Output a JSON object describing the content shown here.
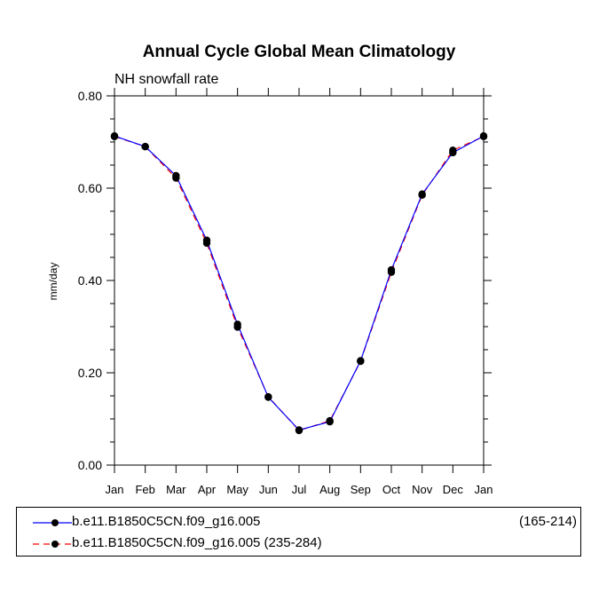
{
  "chart_data": {
    "type": "line",
    "title": "Annual Cycle Global Mean Climatology",
    "subtitle": "NH snowfall rate",
    "ylabel": "mm/day",
    "xlabel": "",
    "ylim": [
      0.0,
      0.8
    ],
    "yticks": [
      "0.00",
      "0.20",
      "0.40",
      "0.60",
      "0.80"
    ],
    "yticks_values": [
      0.0,
      0.2,
      0.4,
      0.6,
      0.8
    ],
    "categories": [
      "Jan",
      "Feb",
      "Mar",
      "Apr",
      "May",
      "Jun",
      "Jul",
      "Aug",
      "Sep",
      "Oct",
      "Nov",
      "Dec",
      "Jan"
    ],
    "series": [
      {
        "name": "b.e11.B1850C5CN.f09_g16.005",
        "extra": "(165-214)",
        "color": "#0000ff",
        "dash": "solid",
        "values": [
          0.713,
          0.69,
          0.627,
          0.487,
          0.305,
          0.147,
          0.076,
          0.094,
          0.226,
          0.423,
          0.587,
          0.677,
          0.713
        ]
      },
      {
        "name": "b.e11.B1850C5CN.f09_g16.005 (235-284)",
        "color": "#ff0000",
        "dash": "dashed",
        "values": [
          0.712,
          0.69,
          0.622,
          0.481,
          0.299,
          0.148,
          0.075,
          0.096,
          0.225,
          0.418,
          0.585,
          0.682,
          0.712
        ]
      }
    ],
    "legend_position": "bottom"
  }
}
